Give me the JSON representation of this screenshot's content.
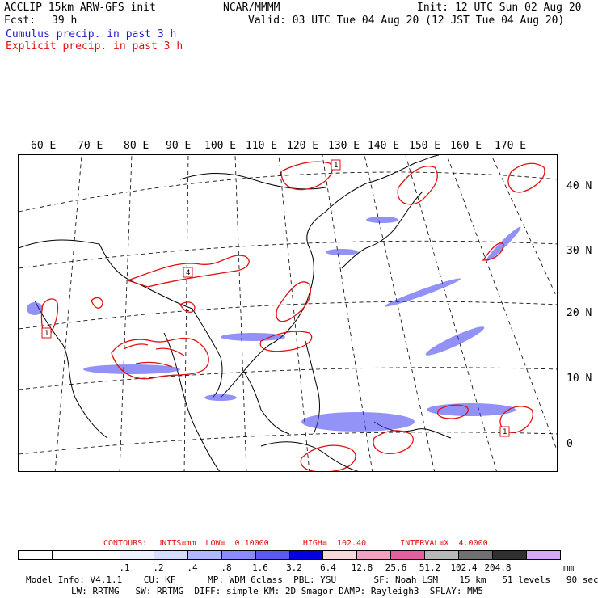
{
  "header": {
    "model": "ACCLIP 15km ARW-GFS init",
    "org": "NCAR/MMMM",
    "init": "Init: 12 UTC Sun 02 Aug 20",
    "fcst_label": "Fcst:",
    "fcst_value": "39 h",
    "valid": "Valid: 03 UTC Tue 04 Aug 20 (12 JST Tue 04 Aug 20)",
    "legend_cumulus": "Cumulus precip. in past 3 h",
    "legend_explicit": "Explicit precip. in past 3 h"
  },
  "map": {
    "lon_labels": [
      "60 E",
      "70 E",
      "80 E",
      "90 E",
      "100 E",
      "110 E",
      "120 E",
      "130 E",
      "140 E",
      "150 E",
      "160 E",
      "170 E"
    ],
    "lat_labels": [
      "40 N",
      "30 N",
      "20 N",
      "10 N",
      "0"
    ],
    "box_labels": [
      "1",
      "4",
      "1",
      "1"
    ],
    "colors": {
      "explicit": "#e01010",
      "cumulus": "#3a3af0",
      "coast": "#000000"
    }
  },
  "contours": "CONTOURS:  UNITS=mm  LOW=  0.10000       HIGH=  102.40       INTERVAL=X  4.0000",
  "colorbar": {
    "labels": [
      ".1",
      ".2",
      ".4",
      ".8",
      "1.6",
      "3.2",
      "6.4",
      "12.8",
      "25.6",
      "51.2",
      "102.4",
      "204.8"
    ],
    "unit": "mm",
    "colors": [
      "#ffffff",
      "#ffffff",
      "#ffffff",
      "#eef0ff",
      "#d6dcff",
      "#b0b8ff",
      "#8a8af8",
      "#5a5af0",
      "#0000e0",
      "#f8d8d8",
      "#f4a0c0",
      "#e060a0",
      "#b8b8b8",
      "#707070",
      "#303030",
      "#d8a8f8"
    ]
  },
  "footer": {
    "line1": "Model Info: V4.1.1    CU: KF      MP: WDM 6class  PBL: YSU       SF: Noah LSM    15 km   51 levels   90 sec",
    "line2": "LW: RRTMG   SW: RRTMG  DIFF: simple KM: 2D Smagor DAMP: Rayleigh3  SFLAY: MM5"
  }
}
